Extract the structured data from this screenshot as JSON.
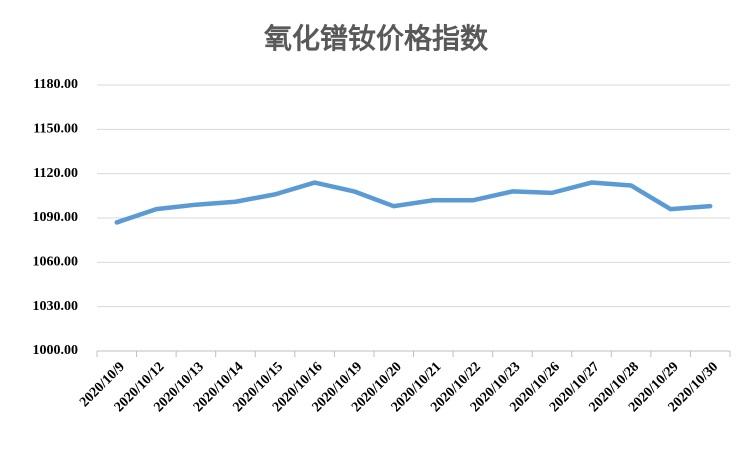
{
  "chart_data": {
    "type": "line",
    "title": "氧化镨钕价格指数",
    "categories": [
      "2020/10/9",
      "2020/10/12",
      "2020/10/13",
      "2020/10/14",
      "2020/10/15",
      "2020/10/16",
      "2020/10/19",
      "2020/10/20",
      "2020/10/21",
      "2020/10/22",
      "2020/10/23",
      "2020/10/26",
      "2020/10/27",
      "2020/10/28",
      "2020/10/29",
      "2020/10/30"
    ],
    "values": [
      1087,
      1096,
      1099,
      1101,
      1106,
      1114,
      1108,
      1098,
      1102,
      1102,
      1108,
      1107,
      1114,
      1112,
      1096,
      1098
    ],
    "color": "#5b9bd5",
    "ylim": [
      1000,
      1180
    ],
    "yticks": [
      {
        "value": 1000,
        "label": "1000.00"
      },
      {
        "value": 1030,
        "label": "1030.00"
      },
      {
        "value": 1060,
        "label": "1060.00"
      },
      {
        "value": 1090,
        "label": "1090.00"
      },
      {
        "value": 1120,
        "label": "1120.00"
      },
      {
        "value": 1150,
        "label": "1150.00"
      },
      {
        "value": 1180,
        "label": "1180.00"
      }
    ],
    "grid": true
  }
}
